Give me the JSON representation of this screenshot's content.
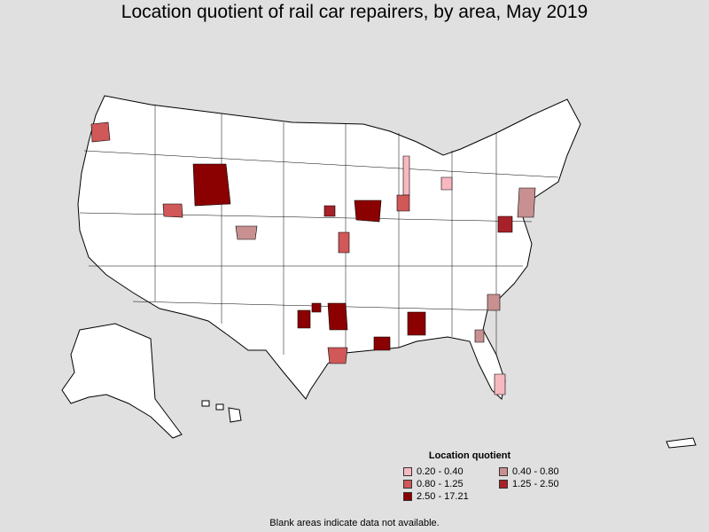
{
  "title": "Location quotient of rail car repairers, by area, May 2019",
  "legend": {
    "title": "Location quotient",
    "items": [
      {
        "label": "0.20 - 0.40",
        "color": "#f8b8c0"
      },
      {
        "label": "0.40 - 0.80",
        "color": "#c89090"
      },
      {
        "label": "0.80 - 1.25",
        "color": "#d05858"
      },
      {
        "label": "1.25 - 2.50",
        "color": "#a82028"
      },
      {
        "label": "2.50 - 17.21",
        "color": "#8b0000"
      }
    ]
  },
  "footnote": "Blank areas indicate data not available.",
  "colors": {
    "background": "#e0e0e0",
    "land": "#ffffff",
    "border": "#000000"
  },
  "regions": [
    {
      "name": "Wyoming nonmetropolitan area",
      "class": "2.50 - 17.21"
    },
    {
      "name": "Northwestern Oregon area",
      "class": "0.80 - 1.25"
    },
    {
      "name": "Grand Junction area",
      "class": "0.80 - 1.25"
    },
    {
      "name": "Pueblo area",
      "class": "0.40 - 0.80"
    },
    {
      "name": "Lincoln area",
      "class": "1.25 - 2.50"
    },
    {
      "name": "Iowa area",
      "class": "2.50 - 17.21"
    },
    {
      "name": "Chicago area",
      "class": "0.20 - 0.40"
    },
    {
      "name": "Northern Indiana area",
      "class": "0.80 - 1.25"
    },
    {
      "name": "Kansas City area",
      "class": "0.80 - 1.25"
    },
    {
      "name": "Western Arkansas area",
      "class": "2.50 - 17.21"
    },
    {
      "name": "Texarkana area",
      "class": "2.50 - 17.21"
    },
    {
      "name": "Northeast Texas area",
      "class": "2.50 - 17.21"
    },
    {
      "name": "Houston area",
      "class": "0.80 - 1.25"
    },
    {
      "name": "Baton Rouge area",
      "class": "2.50 - 17.21"
    },
    {
      "name": "Birmingham area",
      "class": "2.50 - 17.21"
    },
    {
      "name": "Virginia area",
      "class": "1.25 - 2.50"
    },
    {
      "name": "Harrisburg area",
      "class": "0.40 - 0.80"
    },
    {
      "name": "Charleston area",
      "class": "0.40 - 0.80"
    },
    {
      "name": "Savannah area",
      "class": "0.40 - 0.80"
    },
    {
      "name": "Southeast Florida area",
      "class": "0.20 - 0.40"
    },
    {
      "name": "Erie area",
      "class": "0.20 - 0.40"
    }
  ]
}
